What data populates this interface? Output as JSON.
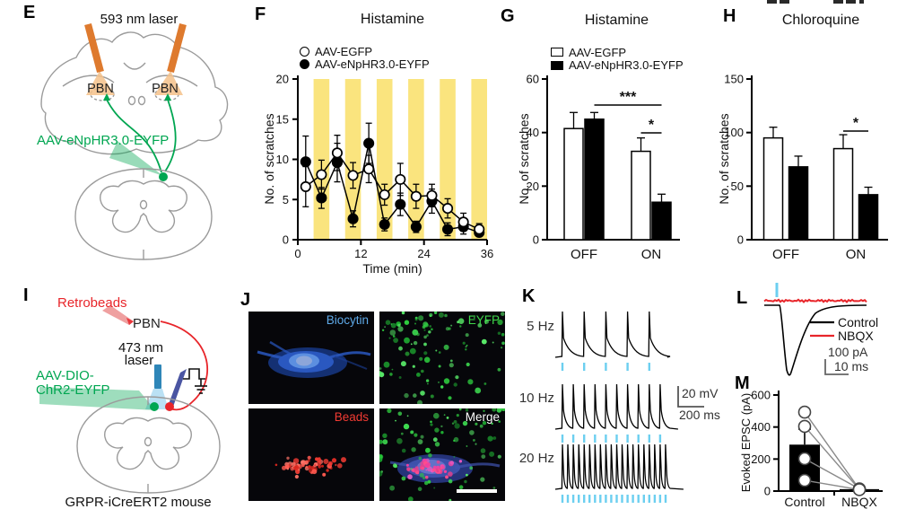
{
  "colors": {
    "accent_green": "#00A651",
    "laser_orange": "#DE7A2E",
    "laser_orange_cone": "#F5C18A",
    "red": "#E8252A",
    "fiber_blue": "#2E86B8",
    "stim_blue": "#6CCFF0",
    "band_yellow": "#FAE47E",
    "outline_gray": "#9B9B9B"
  },
  "panel_e": {
    "label": "E",
    "laser_label": "593 nm laser",
    "pbn_left": "PBN",
    "pbn_right": "PBN",
    "virus_label": "AAV-eNpHR3.0-EYFP"
  },
  "panel_f": {
    "label": "F"
  },
  "panel_g": {
    "label": "G"
  },
  "panel_h": {
    "label": "H"
  },
  "panel_i": {
    "label": "I",
    "retrobeads_label": "Retrobeads",
    "pbn_label": "PBN",
    "laser_label_line1": "473 nm",
    "laser_label_line2": "laser",
    "virus_label_line1": "AAV-DIO-",
    "virus_label_line2": "ChR2-EYFP",
    "caption": "GRPR-iCreERT2 mouse"
  },
  "panel_j": {
    "label": "J",
    "tiles": [
      {
        "name": "Biocytin",
        "label_color": "#5EA9E8"
      },
      {
        "name": "EYFP",
        "label_color": "#3FD54A"
      },
      {
        "name": "Beads",
        "label_color": "#F23B33"
      },
      {
        "name": "Merge",
        "label_color": "#FFFFFF"
      }
    ]
  },
  "panel_k": {
    "label": "K",
    "rows": [
      {
        "label": "5 Hz",
        "spikes": 5
      },
      {
        "label": "10 Hz",
        "spikes": 10
      },
      {
        "label": "20 Hz",
        "spikes": 20
      }
    ],
    "scale_v": "20 mV",
    "scale_h": "200 ms"
  },
  "panel_l": {
    "label": "L",
    "legend": [
      {
        "label": "Control",
        "color": "#000000"
      },
      {
        "label": "NBQX",
        "color": "#E8252A"
      }
    ],
    "scale_v": "100 pA",
    "scale_h": "10 ms"
  },
  "panel_m": {
    "label": "M"
  },
  "chart_data": [
    {
      "panel": "F",
      "type": "line",
      "title": "Histamine",
      "xlabel": "Time (min)",
      "ylabel": "No. of scratches",
      "xlim": [
        0,
        36
      ],
      "ylim": [
        0,
        20
      ],
      "xticks": [
        0,
        12,
        24,
        36
      ],
      "yticks": [
        0,
        5,
        10,
        15,
        20
      ],
      "grid": false,
      "legend_position": "top-left",
      "band_color": "#FAE47E",
      "laser_on_bands": [
        [
          3,
          6
        ],
        [
          9,
          12
        ],
        [
          15,
          18
        ],
        [
          21,
          24
        ],
        [
          27,
          30
        ],
        [
          33,
          36
        ]
      ],
      "x": [
        1.5,
        4.5,
        7.5,
        10.5,
        13.5,
        16.5,
        19.5,
        22.5,
        25.5,
        28.5,
        31.5,
        34.5
      ],
      "series": [
        {
          "name": "AAV-EGFP",
          "marker": "open-circle",
          "color": "#000000",
          "values": [
            6.6,
            8.1,
            10.8,
            8.0,
            8.8,
            5.6,
            7.5,
            5.4,
            5.5,
            3.9,
            2.2,
            1.3
          ],
          "errors": [
            2.5,
            1.8,
            2.2,
            1.6,
            1.7,
            1.3,
            2.0,
            1.5,
            1.4,
            1.2,
            1.1,
            0.7
          ]
        },
        {
          "name": "AAV-eNpHR3.0-EYFP",
          "marker": "filled-circle",
          "color": "#000000",
          "values": [
            9.7,
            5.2,
            9.6,
            2.6,
            12.0,
            1.9,
            4.4,
            1.6,
            4.8,
            1.3,
            1.6,
            0.9
          ],
          "errors": [
            3.2,
            1.3,
            2.4,
            1.0,
            2.5,
            0.8,
            1.4,
            0.7,
            1.5,
            0.8,
            0.9,
            0.5
          ]
        }
      ]
    },
    {
      "panel": "G",
      "type": "bar",
      "title": "Histamine",
      "ylabel": "No. of scratches",
      "ylim": [
        0,
        60
      ],
      "yticks": [
        0,
        20,
        40,
        60
      ],
      "categories": [
        "OFF",
        "ON"
      ],
      "series": [
        {
          "name": "AAV-EGFP",
          "fill": "#FFFFFF",
          "values": [
            41.5,
            33
          ],
          "errors": [
            6,
            5
          ]
        },
        {
          "name": "AAV-eNpHR3.0-EYFP",
          "fill": "#000000",
          "values": [
            45,
            14
          ],
          "errors": [
            2.5,
            3
          ]
        }
      ],
      "significance": [
        {
          "text": "***",
          "from_group": 0,
          "from_series": 1,
          "to_group": 1,
          "to_series": 1
        },
        {
          "text": "*",
          "from_group": 1,
          "from_series": 0,
          "to_group": 1,
          "to_series": 1
        }
      ],
      "legend": true
    },
    {
      "panel": "H",
      "type": "bar",
      "title": "Chloroquine",
      "ylabel": "No. of scratches",
      "ylim": [
        0,
        150
      ],
      "yticks": [
        0,
        50,
        100,
        150
      ],
      "categories": [
        "OFF",
        "ON"
      ],
      "series": [
        {
          "name": "AAV-EGFP",
          "fill": "#FFFFFF",
          "values": [
            95,
            85
          ],
          "errors": [
            10,
            13
          ]
        },
        {
          "name": "AAV-eNpHR3.0-EYFP",
          "fill": "#000000",
          "values": [
            68,
            42
          ],
          "errors": [
            10,
            7
          ]
        }
      ],
      "significance": [
        {
          "text": "*",
          "from_group": 1,
          "from_series": 0,
          "to_group": 1,
          "to_series": 1
        }
      ],
      "legend": false
    },
    {
      "panel": "M",
      "type": "bar-scatter",
      "ylabel": "Evoked EPSC (pA)",
      "ylim": [
        0,
        600
      ],
      "yticks": [
        0,
        200,
        400,
        600
      ],
      "categories": [
        "Control",
        "NBQX"
      ],
      "bar_fill": "#000000",
      "bar_values": [
        290,
        12
      ],
      "bar_errors": [
        97,
        0
      ],
      "paired_points": [
        [
          493,
          12
        ],
        [
          404,
          10
        ],
        [
          202,
          14
        ],
        [
          67,
          9
        ]
      ]
    }
  ]
}
